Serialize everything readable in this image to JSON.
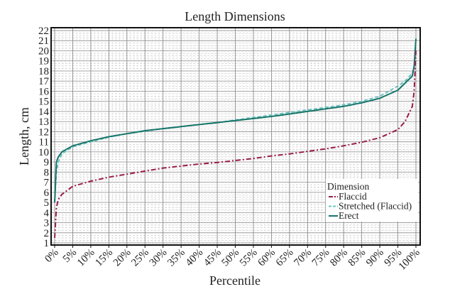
{
  "chart_data": {
    "type": "line",
    "title": "Length Dimensions",
    "xlabel": "Percentile",
    "ylabel": "Length, cm",
    "xlim": [
      0,
      100
    ],
    "ylim": [
      1,
      22
    ],
    "xticks": [
      "0%",
      "5%",
      "10%",
      "15%",
      "20%",
      "25%",
      "30%",
      "35%",
      "40%",
      "45%",
      "50%",
      "55%",
      "60%",
      "65%",
      "70%",
      "75%",
      "80%",
      "85%",
      "90%",
      "95%",
      "100%"
    ],
    "yticks": [
      1,
      2,
      3,
      4,
      5,
      6,
      7,
      8,
      9,
      10,
      11,
      12,
      13,
      14,
      15,
      16,
      17,
      18,
      19,
      20,
      21,
      22
    ],
    "grid": true,
    "legend": {
      "title": "Dimension",
      "placement": "bottom-right"
    },
    "x": [
      0,
      0.5,
      1,
      2,
      5,
      10,
      15,
      20,
      25,
      30,
      35,
      40,
      45,
      50,
      55,
      60,
      65,
      70,
      75,
      80,
      85,
      90,
      95,
      97,
      99,
      99.5,
      100
    ],
    "series": [
      {
        "name": "Flaccid",
        "color": "#9b1b4a",
        "style": "dashdot",
        "values": [
          1.5,
          4.5,
          5.3,
          5.8,
          6.6,
          7.1,
          7.5,
          7.8,
          8.1,
          8.4,
          8.6,
          8.8,
          8.95,
          9.15,
          9.35,
          9.6,
          9.8,
          10.05,
          10.3,
          10.6,
          10.95,
          11.4,
          12.2,
          13.0,
          14.5,
          16.0,
          20.0
        ]
      },
      {
        "name": "Stretched (Flaccid)",
        "color": "#6cc3c0",
        "style": "dashed",
        "values": [
          5.0,
          8.0,
          9.0,
          9.8,
          10.5,
          11.0,
          11.45,
          11.8,
          12.05,
          12.3,
          12.5,
          12.7,
          12.9,
          13.15,
          13.4,
          13.65,
          13.9,
          14.15,
          14.4,
          14.65,
          15.0,
          15.5,
          16.5,
          17.0,
          17.8,
          18.4,
          19.0
        ]
      },
      {
        "name": "Erect",
        "color": "#17756a",
        "style": "solid",
        "values": [
          5.0,
          9.0,
          9.5,
          10.0,
          10.6,
          11.1,
          11.5,
          11.8,
          12.1,
          12.3,
          12.5,
          12.7,
          12.9,
          13.1,
          13.3,
          13.5,
          13.75,
          14.0,
          14.25,
          14.5,
          14.85,
          15.3,
          16.1,
          16.8,
          17.5,
          18.5,
          21.2
        ]
      }
    ]
  }
}
